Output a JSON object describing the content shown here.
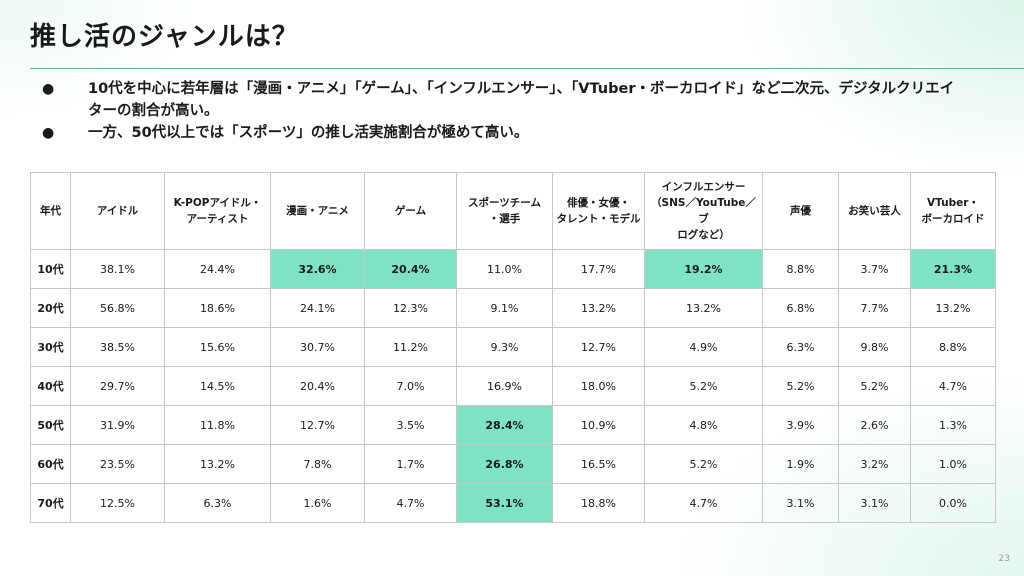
{
  "title": "推し活のジャンルは？",
  "bullets": [
    "10代を中心に若年層は「漫画・アニメ」「ゲーム」、「インフルエンサー」、「VTuber・ボーカロイド」など二次元、デジタルクリエイターの割合が高い。",
    "一方、50代以上では「スポーツ」の推し活実施割合が極めて高い。"
  ],
  "table": {
    "headers": [
      "年代",
      "アイドル",
      "K-POPアイドル・\nアーティスト",
      "漫画・アニメ",
      "ゲーム",
      "スポーツチーム\n・選手",
      "俳優・女優・\nタレント・モデル",
      "インフルエンサー\n（SNS／YouTube／ブ\nログなど）",
      "声優",
      "お笑い芸人",
      "VTuber・\nボーカロイド"
    ],
    "rows": [
      [
        "10代",
        "38.1%",
        "24.4%",
        "32.6%",
        "20.4%",
        "11.0%",
        "17.7%",
        "19.2%",
        "8.8%",
        "3.7%",
        "21.3%"
      ],
      [
        "20代",
        "56.8%",
        "18.6%",
        "24.1%",
        "12.3%",
        "9.1%",
        "13.2%",
        "13.2%",
        "6.8%",
        "7.7%",
        "13.2%"
      ],
      [
        "30代",
        "38.5%",
        "15.6%",
        "30.7%",
        "11.2%",
        "9.3%",
        "12.7%",
        "4.9%",
        "6.3%",
        "9.8%",
        "8.8%"
      ],
      [
        "40代",
        "29.7%",
        "14.5%",
        "20.4%",
        "7.0%",
        "16.9%",
        "18.0%",
        "5.2%",
        "5.2%",
        "5.2%",
        "4.7%"
      ],
      [
        "50代",
        "31.9%",
        "11.8%",
        "12.7%",
        "3.5%",
        "28.4%",
        "10.9%",
        "4.8%",
        "3.9%",
        "2.6%",
        "1.3%"
      ],
      [
        "60代",
        "23.5%",
        "13.2%",
        "7.8%",
        "1.7%",
        "26.8%",
        "16.5%",
        "5.2%",
        "1.9%",
        "3.2%",
        "1.0%"
      ],
      [
        "70代",
        "12.5%",
        "6.3%",
        "1.6%",
        "4.7%",
        "53.1%",
        "18.8%",
        "4.7%",
        "3.1%",
        "3.1%",
        "0.0%"
      ]
    ],
    "highlights": [
      [
        0,
        3
      ],
      [
        0,
        4
      ],
      [
        0,
        7
      ],
      [
        0,
        10
      ],
      [
        4,
        5
      ],
      [
        5,
        5
      ],
      [
        6,
        5
      ]
    ],
    "highlight_color": "#7ee3c4"
  },
  "page_number": "23",
  "colors": {
    "accent": "#39c493",
    "highlight": "#7ee3c4",
    "border": "#c8c8c8"
  }
}
